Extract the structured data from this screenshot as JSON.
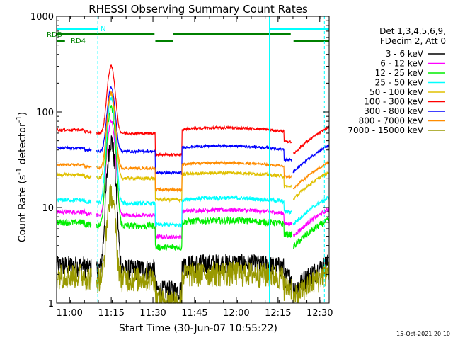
{
  "chart_data": {
    "type": "line",
    "title": "RHESSI Observing Summary Count Rates",
    "xlabel": "Start Time (30-Jun-07 10:55:22)",
    "ylabel_main": "Count Rate (s",
    "ylabel_exp1": "-1",
    "ylabel_mid": " detector",
    "ylabel_exp2": "-1",
    "ylabel_end": ")",
    "timestamp": "15-Oct-2021 20:10",
    "y_scale": "log",
    "ylim": [
      1,
      1000
    ],
    "xlim_minutes": [
      0,
      98
    ],
    "x_ticks": [
      {
        "label": "11:00",
        "min": 4.63
      },
      {
        "label": "11:15",
        "min": 19.63
      },
      {
        "label": "11:30",
        "min": 34.63
      },
      {
        "label": "11:45",
        "min": 49.63
      },
      {
        "label": "12:00",
        "min": 64.63
      },
      {
        "label": "12:15",
        "min": 79.63
      },
      {
        "label": "12:30",
        "min": 94.63
      }
    ],
    "y_ticks": [
      {
        "label": "1",
        "value": 1
      },
      {
        "label": "10",
        "value": 10
      },
      {
        "label": "100",
        "value": 100
      },
      {
        "label": "1000",
        "value": 1000
      }
    ],
    "legend_header": [
      "Det 1,3,4,5,6,9,",
      "FDecim 2, Att 0"
    ],
    "legend_position": "right",
    "series": [
      {
        "name": "3 - 6 keV",
        "color": "#000000",
        "base": 2.5,
        "peak": 50,
        "noise": 0.25
      },
      {
        "name": "6 - 12 keV",
        "color": "#ff00ff",
        "base": 9,
        "peak": 80,
        "noise": 0.05
      },
      {
        "name": "12 - 25 keV",
        "color": "#00ee00",
        "base": 7,
        "peak": 110,
        "noise": 0.08
      },
      {
        "name": "25 - 50 keV",
        "color": "#00ffff",
        "base": 12,
        "peak": 140,
        "noise": 0.05
      },
      {
        "name": "50 - 100 keV",
        "color": "#e0c000",
        "base": 22,
        "peak": 155,
        "noise": 0.04
      },
      {
        "name": "100 - 300 keV",
        "color": "#ff0000",
        "base": 65,
        "peak": 300,
        "noise": 0.03
      },
      {
        "name": "300 - 800 keV",
        "color": "#0000ff",
        "base": 42,
        "peak": 180,
        "noise": 0.03
      },
      {
        "name": "800 - 7000 keV",
        "color": "#ff8c00",
        "base": 28,
        "peak": 160,
        "noise": 0.03
      },
      {
        "name": "7000 - 15000 keV",
        "color": "#999900",
        "base": 2,
        "peak": 14,
        "noise": 0.3
      }
    ],
    "flags": [
      {
        "label": "N",
        "color": "#00ffff"
      },
      {
        "label": "RDD",
        "color": "#008000"
      },
      {
        "label": "RD4",
        "color": "#008000"
      }
    ],
    "segment_boundaries_minutes": [
      14.5,
      35.5,
      45.0,
      81.8,
      95.0
    ]
  }
}
